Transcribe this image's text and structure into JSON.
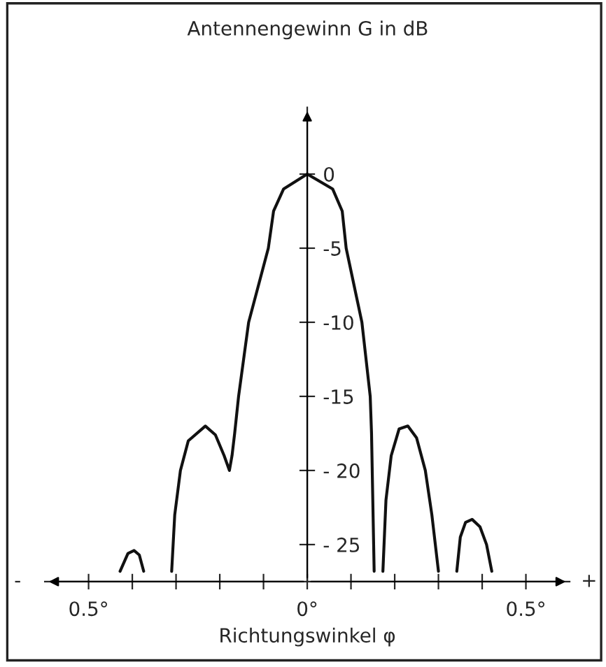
{
  "chart_data": {
    "type": "line",
    "title": "Antennengewinn G in dB",
    "xlabel": "Richtungswinkel φ",
    "annotations": [
      "-",
      "+"
    ],
    "xlim": [
      -0.6,
      0.6
    ],
    "ylim": [
      -27.5,
      4.5
    ],
    "xticks": [
      {
        "value": -0.5,
        "label": "0.5°"
      },
      {
        "value": -0.4,
        "label": null
      },
      {
        "value": -0.3,
        "label": null
      },
      {
        "value": -0.2,
        "label": null
      },
      {
        "value": -0.1,
        "label": null
      },
      {
        "value": 0,
        "label": "0°"
      },
      {
        "value": 0.1,
        "label": null
      },
      {
        "value": 0.2,
        "label": null
      },
      {
        "value": 0.3,
        "label": null
      },
      {
        "value": 0.4,
        "label": null
      },
      {
        "value": 0.5,
        "label": "0.5°"
      }
    ],
    "yticks": [
      0,
      {
        "value": -5,
        "label": "-5"
      },
      {
        "value": -10,
        "label": "-10"
      },
      {
        "value": -15,
        "label": "-15"
      },
      {
        "value": -20,
        "label": "- 20"
      },
      {
        "value": -25,
        "label": "- 25"
      }
    ],
    "grid": false,
    "legend": false,
    "marker": "none",
    "line_style": "solid",
    "series": [
      {
        "color": "#111111",
        "x": [
          -0.428,
          -0.41,
          -0.396,
          -0.384,
          -0.374,
          -0.35,
          -0.31,
          -0.303,
          -0.29,
          -0.272,
          -0.233,
          -0.21,
          -0.19,
          -0.178,
          -0.172,
          -0.166,
          -0.157,
          -0.134,
          -0.089,
          -0.077,
          -0.054,
          0,
          0.058,
          0.08,
          0.089,
          0.125,
          0.144,
          0.147,
          0.153,
          0.16,
          0.173,
          0.18,
          0.192,
          0.21,
          0.23,
          0.25,
          0.27,
          0.285,
          0.3,
          0.32,
          0.342,
          0.35,
          0.362,
          0.377,
          0.395,
          0.41,
          0.422
        ],
        "values": [
          -26.8,
          -25.6,
          -25.4,
          -25.7,
          -26.8,
          null,
          -26.8,
          -23,
          -20,
          -18,
          -17,
          -17.6,
          -19,
          -20,
          -19,
          -17.5,
          -15,
          -10,
          -5,
          -2.5,
          -1,
          0,
          -1,
          -2.5,
          -5,
          -10,
          -15,
          -17.5,
          -26.8,
          null,
          -26.8,
          -22,
          -19,
          -17.2,
          -17,
          -17.8,
          -20,
          -23,
          -26.8,
          null,
          -26.8,
          -24.5,
          -23.5,
          -23.3,
          -23.8,
          -25,
          -26.8
        ]
      }
    ]
  }
}
